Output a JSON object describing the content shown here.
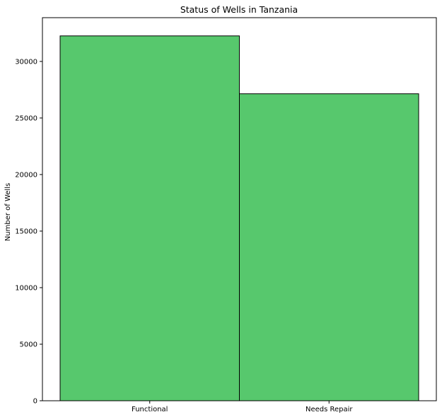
{
  "chart_data": {
    "type": "bar",
    "title": "Status of Wells in Tanzania",
    "xlabel": "",
    "ylabel": "Number of Wells",
    "categories": [
      "Functional",
      "Needs Repair"
    ],
    "values": [
      32259,
      27141
    ],
    "ylim": [
      0,
      33870
    ],
    "yticks": [
      0,
      5000,
      10000,
      15000,
      20000,
      25000,
      30000
    ],
    "grid": false,
    "legend": "none",
    "colors": {
      "bar_fill": "#57c86d",
      "bar_edge": "#000000",
      "axes": "#000000",
      "background": "#ffffff"
    }
  }
}
